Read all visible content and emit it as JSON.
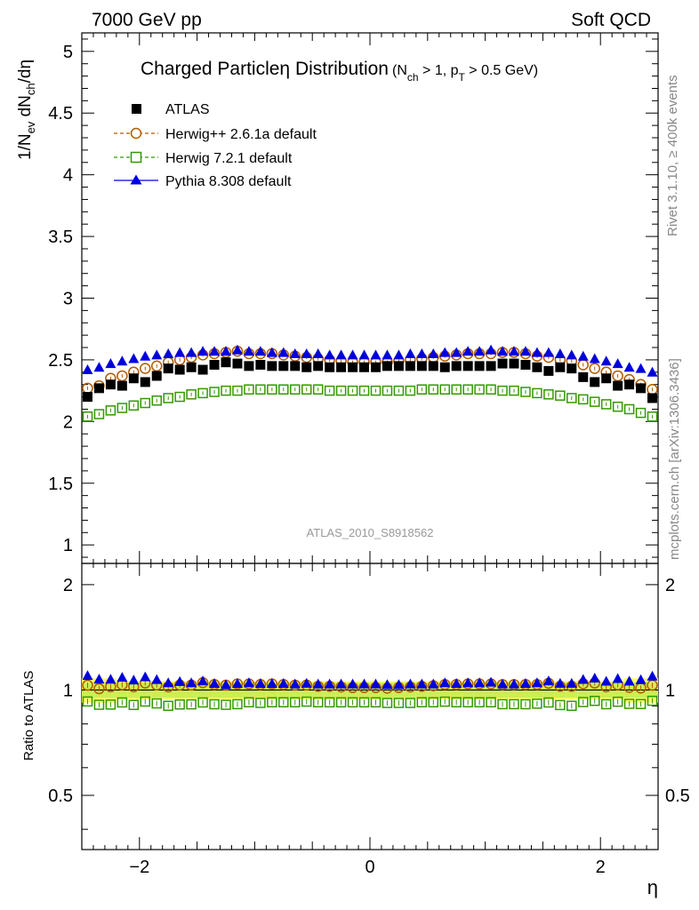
{
  "header": {
    "energy_label": "7000 GeV pp",
    "process_label": "Soft QCD"
  },
  "side_labels": {
    "rivet": "Rivet 3.1.10, ≥ 400k events",
    "mcplots": "mcplots.cern.ch [arXiv:1306.3436]"
  },
  "watermark": "ATLAS_2010_S8918562",
  "chart_data": {
    "type": "scatter",
    "title": "Charged Particle η Distribution",
    "title_main": "Charged Particle",
    "title_eta": "η",
    "title_tail": " Distribution",
    "title_cut_open": "(N",
    "title_cut_sub1": "ch",
    "title_cut_mid": " > 1, p",
    "title_cut_sub2": "T",
    "title_cut_close": " > 0.5 GeV)",
    "ylabel_parts": {
      "a": "1/N",
      "a_sub": "ev",
      "b": " dN",
      "b_sub": "ch",
      "c": "/dη"
    },
    "ratio_ylabel": "Ratio to ATLAS",
    "xlabel": "η",
    "xlim": [
      -2.5,
      2.5
    ],
    "ylim": [
      0.85,
      5.15
    ],
    "ratio_ylim": [
      0.35,
      2.3
    ],
    "x_ticks": [
      -2,
      0,
      2
    ],
    "x_tick_labels": [
      "−2",
      "0",
      "2"
    ],
    "y_ticks": [
      1,
      1.5,
      2,
      2.5,
      3,
      3.5,
      4,
      4.5,
      5
    ],
    "y_tick_labels": [
      "1",
      "1.5",
      "2",
      "2.5",
      "3",
      "3.5",
      "4",
      "4.5",
      "5"
    ],
    "ratio_ticks": [
      0.5,
      1,
      2
    ],
    "ratio_tick_labels": [
      "0.5",
      "1",
      "2"
    ],
    "x": [
      -2.45,
      -2.35,
      -2.25,
      -2.15,
      -2.05,
      -1.95,
      -1.85,
      -1.75,
      -1.65,
      -1.55,
      -1.45,
      -1.35,
      -1.25,
      -1.15,
      -1.05,
      -0.95,
      -0.85,
      -0.75,
      -0.65,
      -0.55,
      -0.45,
      -0.35,
      -0.25,
      -0.15,
      -0.05,
      0.05,
      0.15,
      0.25,
      0.35,
      0.45,
      0.55,
      0.65,
      0.75,
      0.85,
      0.95,
      1.05,
      1.15,
      1.25,
      1.35,
      1.45,
      1.55,
      1.65,
      1.75,
      1.85,
      1.95,
      2.05,
      2.15,
      2.25,
      2.35,
      2.45
    ],
    "legend": {
      "position": "top-left"
    },
    "series": [
      {
        "name": "ATLAS",
        "marker": "square-filled",
        "color": "#000000",
        "values": [
          2.2,
          2.27,
          2.3,
          2.29,
          2.35,
          2.32,
          2.37,
          2.43,
          2.42,
          2.44,
          2.42,
          2.46,
          2.48,
          2.47,
          2.45,
          2.46,
          2.45,
          2.45,
          2.45,
          2.44,
          2.45,
          2.44,
          2.44,
          2.44,
          2.44,
          2.44,
          2.45,
          2.45,
          2.45,
          2.45,
          2.45,
          2.44,
          2.45,
          2.45,
          2.45,
          2.45,
          2.47,
          2.47,
          2.46,
          2.44,
          2.41,
          2.44,
          2.43,
          2.36,
          2.32,
          2.35,
          2.29,
          2.3,
          2.27,
          2.19
        ]
      },
      {
        "name": "Herwig++ 2.6.1a default",
        "marker": "circle-open",
        "color": "#b35a00",
        "linestyle": "dashed",
        "values": [
          2.27,
          2.29,
          2.35,
          2.37,
          2.4,
          2.43,
          2.45,
          2.48,
          2.5,
          2.52,
          2.54,
          2.55,
          2.56,
          2.57,
          2.55,
          2.55,
          2.55,
          2.54,
          2.53,
          2.52,
          2.51,
          2.5,
          2.49,
          2.48,
          2.48,
          2.48,
          2.48,
          2.49,
          2.5,
          2.51,
          2.52,
          2.53,
          2.54,
          2.55,
          2.55,
          2.55,
          2.56,
          2.56,
          2.55,
          2.53,
          2.52,
          2.5,
          2.49,
          2.46,
          2.43,
          2.4,
          2.37,
          2.34,
          2.3,
          2.26
        ]
      },
      {
        "name": "Herwig 7.2.1 default",
        "marker": "square-open",
        "color": "#339900",
        "linestyle": "dashed",
        "values": [
          2.04,
          2.06,
          2.09,
          2.11,
          2.13,
          2.15,
          2.17,
          2.19,
          2.2,
          2.22,
          2.23,
          2.24,
          2.25,
          2.25,
          2.26,
          2.26,
          2.26,
          2.26,
          2.26,
          2.26,
          2.26,
          2.25,
          2.25,
          2.25,
          2.25,
          2.25,
          2.25,
          2.25,
          2.25,
          2.26,
          2.26,
          2.26,
          2.26,
          2.26,
          2.26,
          2.26,
          2.25,
          2.25,
          2.24,
          2.23,
          2.22,
          2.21,
          2.19,
          2.18,
          2.16,
          2.14,
          2.12,
          2.1,
          2.07,
          2.04
        ]
      },
      {
        "name": "Pythia 8.308 default",
        "marker": "triangle-filled",
        "color": "#0000dd",
        "linestyle": "solid",
        "values": [
          2.42,
          2.44,
          2.47,
          2.49,
          2.51,
          2.53,
          2.54,
          2.55,
          2.56,
          2.56,
          2.57,
          2.57,
          2.57,
          2.58,
          2.57,
          2.57,
          2.56,
          2.56,
          2.55,
          2.55,
          2.55,
          2.54,
          2.54,
          2.54,
          2.54,
          2.54,
          2.54,
          2.54,
          2.55,
          2.55,
          2.55,
          2.56,
          2.56,
          2.57,
          2.57,
          2.58,
          2.57,
          2.57,
          2.57,
          2.56,
          2.56,
          2.55,
          2.54,
          2.53,
          2.51,
          2.49,
          2.47,
          2.44,
          2.43,
          2.4
        ]
      }
    ],
    "ratio_band": {
      "inner": 0.05,
      "outer_edge": 0.08
    }
  }
}
